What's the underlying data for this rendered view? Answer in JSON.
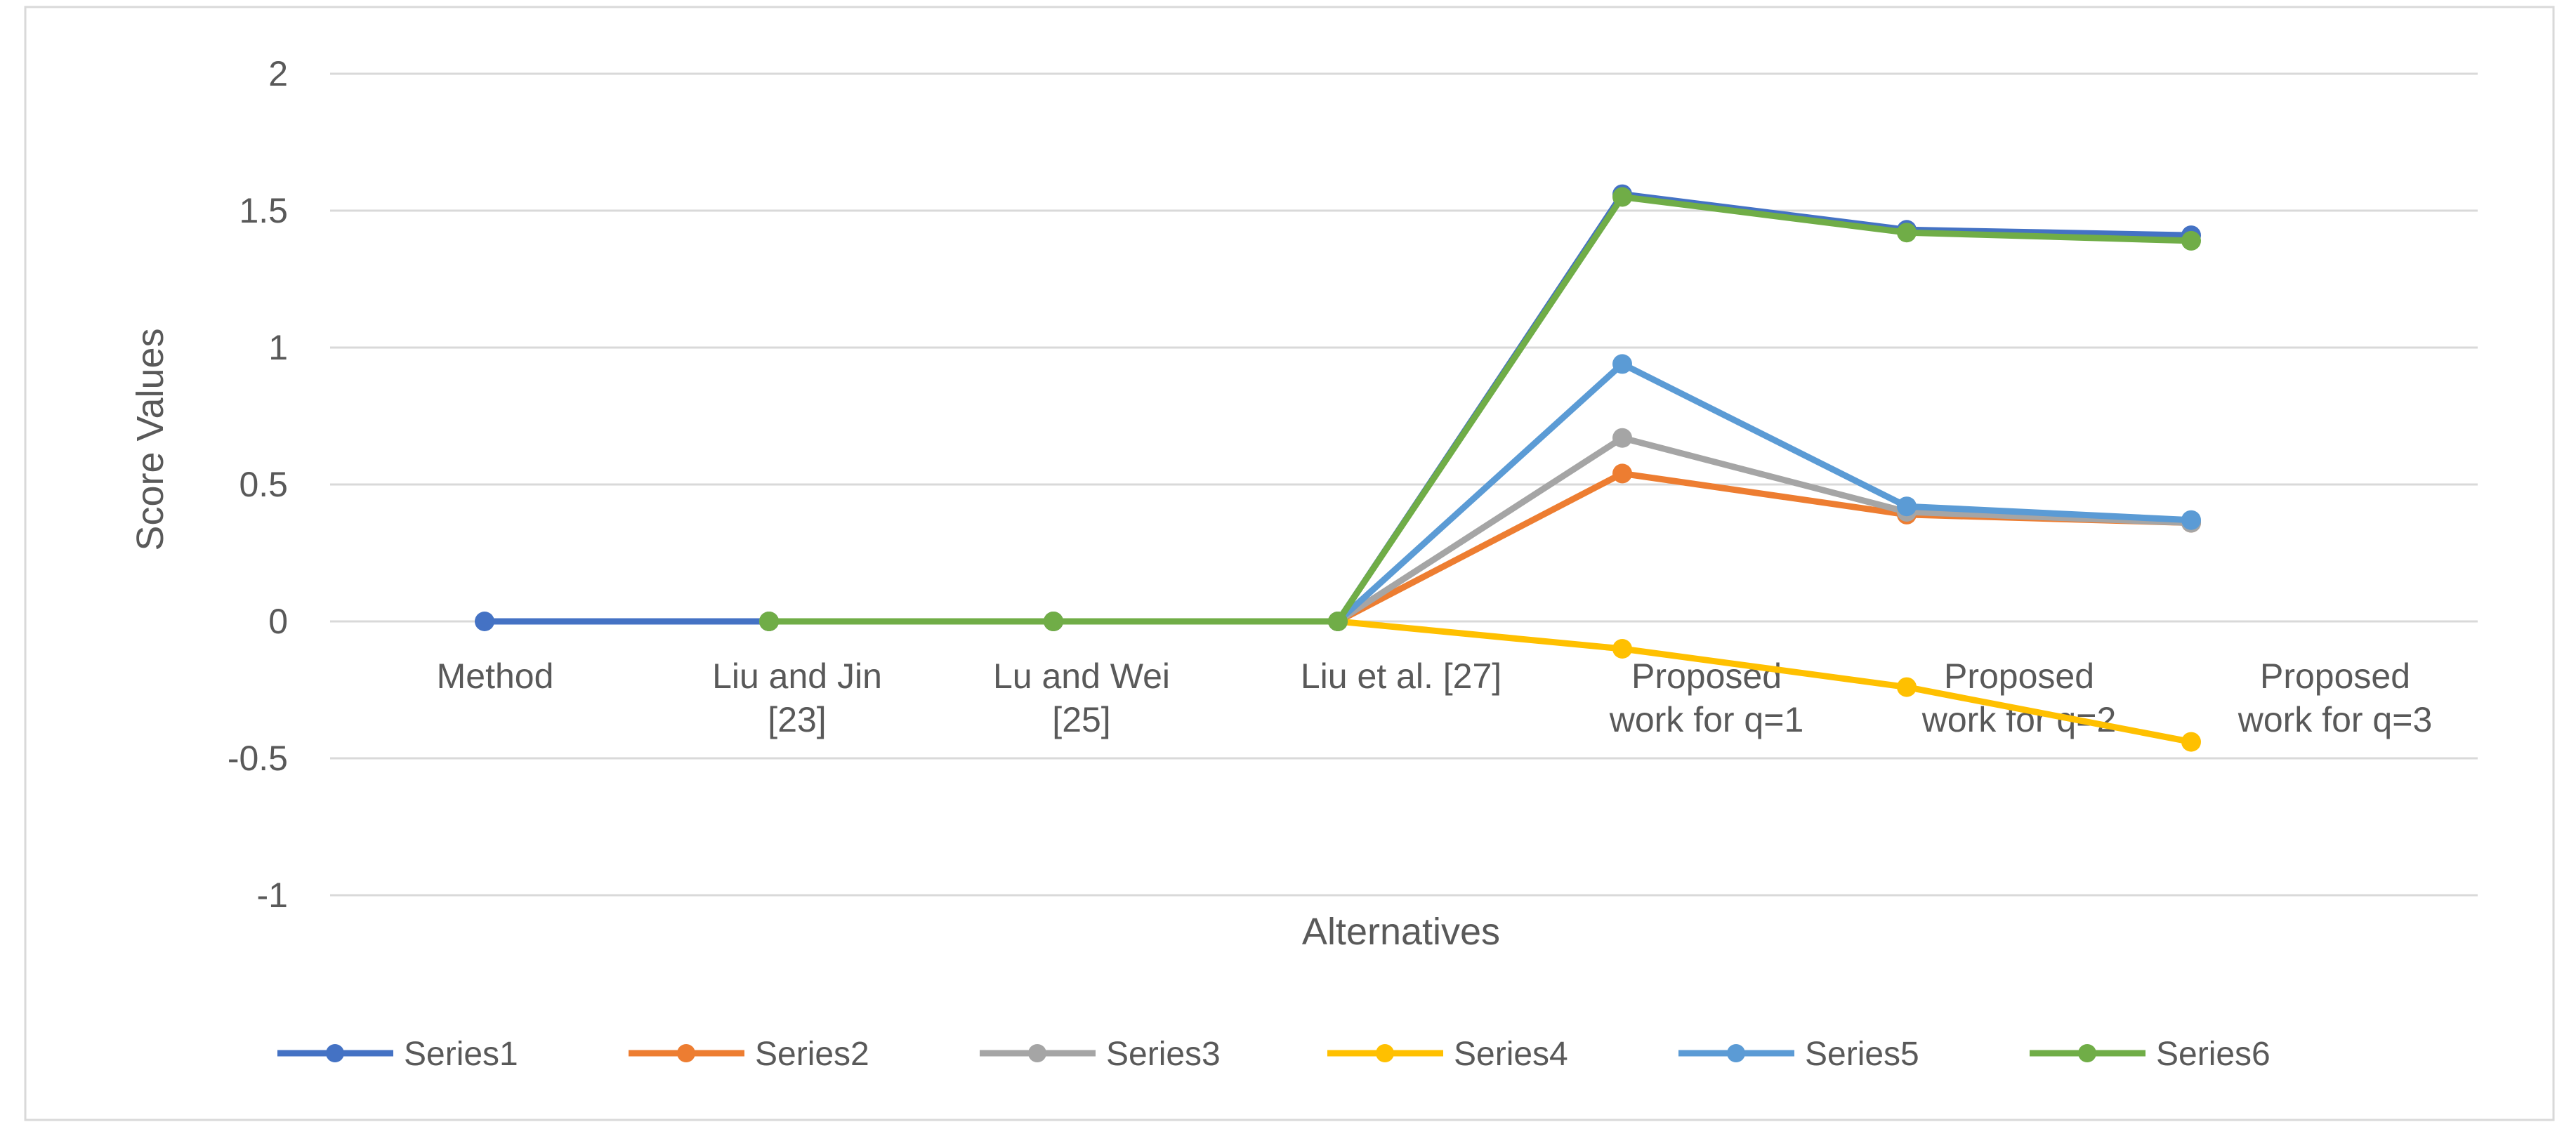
{
  "chart_data": {
    "type": "line",
    "title": "",
    "xlabel": "Alternatives",
    "ylabel": "Score Values",
    "ylim": [
      -1,
      2
    ],
    "yticks": [
      -1,
      -0.5,
      0,
      0.5,
      1,
      1.5,
      2
    ],
    "ytick_labels": [
      "-1",
      "-0.5",
      "0",
      "0.5",
      "1",
      "1.5",
      "2"
    ],
    "grid": true,
    "legend_position": "bottom",
    "categories": [
      "Method",
      "Liu and Jin [23]",
      "Lu and Wei [25]",
      "Liu et al. [27]",
      "Proposed work for q=1",
      "Proposed work for q=2",
      "Proposed work for q=3"
    ],
    "category_lines": [
      [
        "Method"
      ],
      [
        "Liu and Jin",
        "[23]"
      ],
      [
        "Lu and Wei",
        "[25]"
      ],
      [
        "Liu et al. [27]"
      ],
      [
        "Proposed",
        "work for q=1"
      ],
      [
        "Proposed",
        "work for q=2"
      ],
      [
        "Proposed",
        "work for q=3"
      ]
    ],
    "series": [
      {
        "name": "Series1",
        "color": "#4472C4",
        "values": [
          0,
          0,
          0,
          0,
          1.56,
          1.43,
          1.41
        ]
      },
      {
        "name": "Series2",
        "color": "#ED7D31",
        "values": [
          null,
          0,
          0,
          0,
          0.54,
          0.39,
          0.36
        ]
      },
      {
        "name": "Series3",
        "color": "#A5A5A5",
        "values": [
          null,
          0,
          0,
          0,
          0.67,
          0.4,
          0.36
        ]
      },
      {
        "name": "Series4",
        "color": "#FFC000",
        "values": [
          null,
          0,
          0,
          0,
          -0.1,
          -0.24,
          -0.44
        ]
      },
      {
        "name": "Series5",
        "color": "#5B9BD5",
        "values": [
          null,
          0,
          0,
          0,
          0.94,
          0.42,
          0.37
        ]
      },
      {
        "name": "Series6",
        "color": "#70AD47",
        "values": [
          null,
          0,
          0,
          0,
          1.55,
          1.42,
          1.39
        ]
      }
    ]
  }
}
